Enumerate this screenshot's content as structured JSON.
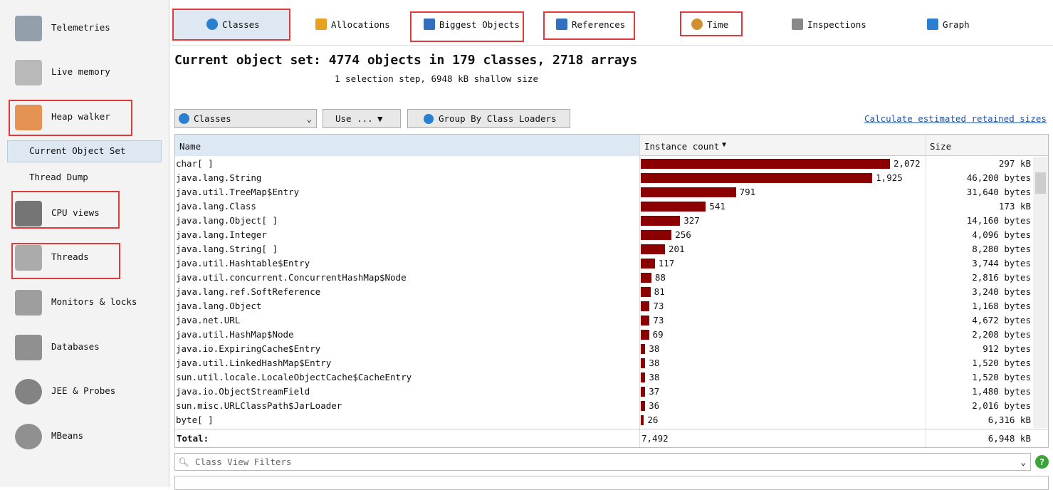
{
  "sidebar": {
    "items": [
      "Telemetries",
      "Live memory",
      "Heap walker",
      "Current Object Set",
      "Thread Dump",
      "CPU views",
      "Threads",
      "Monitors & locks",
      "Databases",
      "JEE & Probes",
      "MBeans"
    ]
  },
  "tabs": [
    "Classes",
    "Allocations",
    "Biggest Objects",
    "References",
    "Time",
    "Inspections",
    "Graph"
  ],
  "heading": {
    "title": "Current object set: 4774 objects in 179 classes, 2718 arrays",
    "subtitle": "1 selection step, 6948 kB shallow size"
  },
  "toolbar": {
    "view_select": "Classes",
    "use_button": "Use ...",
    "group_button": "Group By Class Loaders",
    "link": "Calculate estimated retained sizes"
  },
  "table": {
    "columns": [
      "Name",
      "Instance count",
      "Size"
    ],
    "rows": [
      {
        "name": "char[ ]",
        "count": {
          "value": 2072,
          "label": "2,072"
        },
        "size": "297 kB"
      },
      {
        "name": "java.lang.String",
        "count": {
          "value": 1925,
          "label": "1,925"
        },
        "size": "46,200 bytes"
      },
      {
        "name": "java.util.TreeMap$Entry",
        "count": 791,
        "size": "31,640 bytes"
      },
      {
        "name": "java.lang.Class",
        "count": 541,
        "size": "173 kB"
      },
      {
        "name": "java.lang.Object[ ]",
        "count": 327,
        "size": "14,160 bytes"
      },
      {
        "name": "java.lang.Integer",
        "count": 256,
        "size": "4,096 bytes"
      },
      {
        "name": "java.lang.String[ ]",
        "count": 201,
        "size": "8,280 bytes"
      },
      {
        "name": "java.util.Hashtable$Entry",
        "count": 117,
        "size": "3,744 bytes"
      },
      {
        "name": "java.util.concurrent.ConcurrentHashMap$Node",
        "count": 88,
        "size": "2,816 bytes"
      },
      {
        "name": "java.lang.ref.SoftReference",
        "count": 81,
        "size": "3,240 bytes"
      },
      {
        "name": "java.lang.Object",
        "count": 73,
        "size": "1,168 bytes"
      },
      {
        "name": "java.net.URL",
        "count": 73,
        "size": "4,672 bytes"
      },
      {
        "name": "java.util.HashMap$Node",
        "count": 69,
        "size": "2,208 bytes"
      },
      {
        "name": "java.io.ExpiringCache$Entry",
        "count": 38,
        "size": "912 bytes"
      },
      {
        "name": "java.util.LinkedHashMap$Entry",
        "count": 38,
        "size": "1,520 bytes"
      },
      {
        "name": "sun.util.locale.LocaleObjectCache$CacheEntry",
        "count": 38,
        "size": "1,520 bytes"
      },
      {
        "name": "java.io.ObjectStreamField",
        "count": 37,
        "size": "1,480 bytes"
      },
      {
        "name": "sun.misc.URLClassPath$JarLoader",
        "count": 36,
        "size": "2,016 bytes"
      },
      {
        "name": "byte[ ]",
        "count": 26,
        "size": "6,316 kB"
      }
    ],
    "total": {
      "label": "Total:",
      "count": "7,492",
      "size": "6,948 kB"
    }
  },
  "filter": {
    "placeholder": "Class View Filters"
  }
}
